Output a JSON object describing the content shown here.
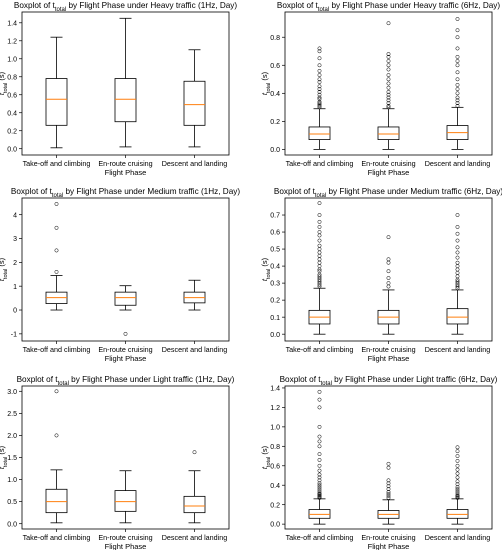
{
  "figure": {
    "xlabel": "Flight Phase",
    "categories": [
      "Take-off and climbing",
      "En-route cruising",
      "Descent and landing"
    ],
    "ylabel_main": "t",
    "ylabel_sub": "total",
    "ylabel_unit": " (s)",
    "median_color": "#ff7f0e",
    "box_color": "#000000"
  },
  "chart_data": [
    {
      "type": "boxplot",
      "title_prefix": "Boxplot of ",
      "title_main": "t",
      "title_sub": "total",
      "title_suffix": " by Flight Phase under Heavy traffic (1Hz, Day)",
      "ylim": [
        -0.07,
        1.52
      ],
      "yticks": [
        0.0,
        0.2,
        0.4,
        0.6,
        0.8,
        1.0,
        1.2,
        1.4
      ],
      "boxes": [
        {
          "category": "Take-off and climbing",
          "whislo": 0.01,
          "q1": 0.26,
          "med": 0.55,
          "q3": 0.78,
          "whishi": 1.24,
          "fliers": []
        },
        {
          "category": "En-route cruising",
          "whislo": 0.02,
          "q1": 0.3,
          "med": 0.55,
          "q3": 0.78,
          "whishi": 1.45,
          "fliers": []
        },
        {
          "category": "Descent and landing",
          "whislo": 0.02,
          "q1": 0.26,
          "med": 0.49,
          "q3": 0.75,
          "whishi": 1.1,
          "fliers": []
        }
      ]
    },
    {
      "type": "boxplot",
      "title_prefix": "Boxplot of ",
      "title_main": "t",
      "title_sub": "total",
      "title_suffix": " by Flight Phase under Heavy traffic (6Hz, Day)",
      "ylim": [
        -0.04,
        0.98
      ],
      "yticks": [
        0.0,
        0.2,
        0.4,
        0.6,
        0.8
      ],
      "boxes": [
        {
          "category": "Take-off and climbing",
          "whislo": 0.0,
          "q1": 0.07,
          "med": 0.11,
          "q3": 0.16,
          "whishi": 0.29,
          "fliers": [
            0.3,
            0.31,
            0.32,
            0.33,
            0.34,
            0.36,
            0.37,
            0.39,
            0.41,
            0.43,
            0.45,
            0.48,
            0.5,
            0.53,
            0.56,
            0.6,
            0.65,
            0.7,
            0.72
          ]
        },
        {
          "category": "En-route cruising",
          "whislo": 0.0,
          "q1": 0.07,
          "med": 0.11,
          "q3": 0.16,
          "whishi": 0.29,
          "fliers": [
            0.3,
            0.31,
            0.33,
            0.35,
            0.37,
            0.39,
            0.41,
            0.44,
            0.47,
            0.5,
            0.53,
            0.57,
            0.6,
            0.63,
            0.66,
            0.68,
            0.9
          ]
        },
        {
          "category": "Descent and landing",
          "whislo": 0.0,
          "q1": 0.07,
          "med": 0.12,
          "q3": 0.17,
          "whishi": 0.3,
          "fliers": [
            0.31,
            0.33,
            0.35,
            0.37,
            0.4,
            0.43,
            0.46,
            0.5,
            0.55,
            0.6,
            0.63,
            0.66,
            0.72,
            0.8,
            0.85,
            0.93
          ]
        }
      ]
    },
    {
      "type": "boxplot",
      "title_prefix": "Boxplot of ",
      "title_main": "t",
      "title_sub": "total",
      "title_suffix": " by Flight Phase under Medium traffic (1Hz, Day)",
      "ylim": [
        -1.3,
        4.7
      ],
      "yticks": [
        -1,
        0,
        1,
        2,
        3,
        4
      ],
      "boxes": [
        {
          "category": "Take-off and climbing",
          "whislo": 0.0,
          "q1": 0.27,
          "med": 0.52,
          "q3": 0.75,
          "whishi": 1.45,
          "fliers": [
            1.6,
            2.5,
            3.45,
            4.45
          ]
        },
        {
          "category": "En-route cruising",
          "whislo": 0.0,
          "q1": 0.2,
          "med": 0.52,
          "q3": 0.75,
          "whishi": 1.02,
          "fliers": [
            -1.0
          ]
        },
        {
          "category": "Descent and landing",
          "whislo": 0.0,
          "q1": 0.3,
          "med": 0.52,
          "q3": 0.75,
          "whishi": 1.25,
          "fliers": []
        }
      ]
    },
    {
      "type": "boxplot",
      "title_prefix": "Boxplot of ",
      "title_main": "t",
      "title_sub": "total",
      "title_suffix": " by Flight Phase under Medium traffic (6Hz, Day)",
      "ylim": [
        -0.04,
        0.8
      ],
      "yticks": [
        0.0,
        0.1,
        0.2,
        0.3,
        0.4,
        0.5,
        0.6,
        0.7
      ],
      "boxes": [
        {
          "category": "Take-off and climbing",
          "whislo": 0.0,
          "q1": 0.06,
          "med": 0.1,
          "q3": 0.14,
          "whishi": 0.27,
          "fliers": [
            0.28,
            0.29,
            0.3,
            0.31,
            0.32,
            0.33,
            0.34,
            0.35,
            0.37,
            0.38,
            0.4,
            0.42,
            0.44,
            0.46,
            0.48,
            0.5,
            0.52,
            0.55,
            0.58,
            0.6,
            0.63,
            0.66,
            0.7,
            0.77
          ]
        },
        {
          "category": "En-route cruising",
          "whislo": 0.0,
          "q1": 0.06,
          "med": 0.1,
          "q3": 0.14,
          "whishi": 0.26,
          "fliers": [
            0.28,
            0.3,
            0.33,
            0.37,
            0.42,
            0.44,
            0.57
          ]
        },
        {
          "category": "Descent and landing",
          "whislo": 0.0,
          "q1": 0.06,
          "med": 0.1,
          "q3": 0.15,
          "whishi": 0.26,
          "fliers": [
            0.27,
            0.28,
            0.29,
            0.3,
            0.31,
            0.32,
            0.34,
            0.36,
            0.38,
            0.4,
            0.42,
            0.45,
            0.48,
            0.51,
            0.55,
            0.59,
            0.63,
            0.7
          ]
        }
      ]
    },
    {
      "type": "boxplot",
      "title_prefix": "Boxplot of ",
      "title_main": "t",
      "title_sub": "total",
      "title_suffix": " by Flight Phase under Light traffic (1Hz, Day)",
      "ylim": [
        -0.12,
        3.12
      ],
      "yticks": [
        0.0,
        0.5,
        1.0,
        1.5,
        2.0,
        2.5,
        3.0
      ],
      "boxes": [
        {
          "category": "Take-off and climbing",
          "whislo": 0.02,
          "q1": 0.25,
          "med": 0.5,
          "q3": 0.78,
          "whishi": 1.22,
          "fliers": [
            2.0,
            3.0
          ]
        },
        {
          "category": "En-route cruising",
          "whislo": 0.02,
          "q1": 0.28,
          "med": 0.5,
          "q3": 0.75,
          "whishi": 1.2,
          "fliers": []
        },
        {
          "category": "Descent and landing",
          "whislo": 0.02,
          "q1": 0.25,
          "med": 0.4,
          "q3": 0.62,
          "whishi": 1.2,
          "fliers": [
            1.62
          ]
        }
      ]
    },
    {
      "type": "boxplot",
      "title_prefix": "Boxplot of ",
      "title_main": "t",
      "title_sub": "total",
      "title_suffix": " by Flight Phase under Light traffic (6Hz, Day)",
      "ylim": [
        -0.05,
        1.42
      ],
      "yticks": [
        0.0,
        0.2,
        0.4,
        0.6,
        0.8,
        1.0,
        1.2,
        1.4
      ],
      "boxes": [
        {
          "category": "Take-off and climbing",
          "whislo": 0.0,
          "q1": 0.06,
          "med": 0.1,
          "q3": 0.15,
          "whishi": 0.26,
          "fliers": [
            0.27,
            0.28,
            0.29,
            0.3,
            0.31,
            0.32,
            0.34,
            0.36,
            0.38,
            0.4,
            0.42,
            0.45,
            0.48,
            0.51,
            0.55,
            0.6,
            0.66,
            0.72,
            0.8,
            0.85,
            0.9,
            1.0,
            1.2,
            1.28,
            1.36
          ]
        },
        {
          "category": "En-route cruising",
          "whislo": 0.0,
          "q1": 0.06,
          "med": 0.1,
          "q3": 0.14,
          "whishi": 0.25,
          "fliers": [
            0.27,
            0.29,
            0.31,
            0.33,
            0.36,
            0.39,
            0.42,
            0.45,
            0.58,
            0.62
          ]
        },
        {
          "category": "Descent and landing",
          "whislo": 0.0,
          "q1": 0.06,
          "med": 0.1,
          "q3": 0.15,
          "whishi": 0.26,
          "fliers": [
            0.27,
            0.28,
            0.29,
            0.3,
            0.32,
            0.34,
            0.36,
            0.38,
            0.41,
            0.44,
            0.48,
            0.52,
            0.56,
            0.6,
            0.65,
            0.7,
            0.75,
            0.79
          ]
        }
      ]
    }
  ]
}
